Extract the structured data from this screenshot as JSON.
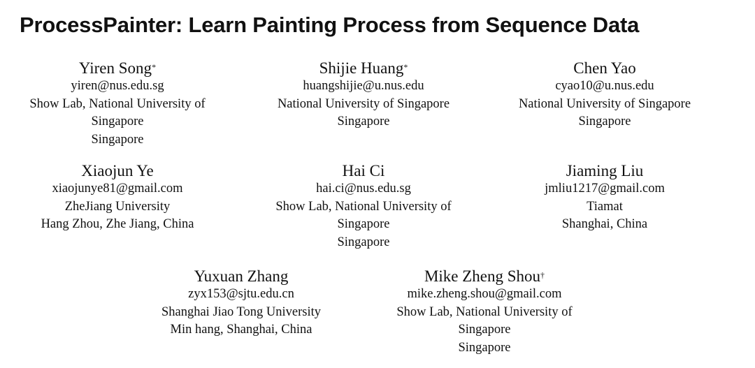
{
  "title": "ProcessPainter: Learn Painting Process from Sequence Data",
  "authors": [
    {
      "name": "Yiren Song",
      "mark": "*",
      "email": "yiren@nus.edu.sg",
      "affiliation": [
        "Show Lab, National University of",
        "Singapore",
        "Singapore"
      ]
    },
    {
      "name": "Shijie Huang",
      "mark": "*",
      "email": "huangshijie@u.nus.edu",
      "affiliation": [
        "National University of Singapore",
        "Singapore"
      ]
    },
    {
      "name": "Chen Yao",
      "mark": "",
      "email": "cyao10@u.nus.edu",
      "affiliation": [
        "National University of Singapore",
        "Singapore"
      ]
    },
    {
      "name": "Xiaojun Ye",
      "mark": "",
      "email": "xiaojunye81@gmail.com",
      "affiliation": [
        "ZheJiang University",
        "Hang Zhou, Zhe Jiang, China"
      ]
    },
    {
      "name": "Hai Ci",
      "mark": "",
      "email": "hai.ci@nus.edu.sg",
      "affiliation": [
        "Show Lab, National University of",
        "Singapore",
        "Singapore"
      ]
    },
    {
      "name": "Jiaming Liu",
      "mark": "",
      "email": "jmliu1217@gmail.com",
      "affiliation": [
        "Tiamat",
        "Shanghai, China"
      ]
    },
    {
      "name": "Yuxuan Zhang",
      "mark": "",
      "email": "zyx153@sjtu.edu.cn",
      "affiliation": [
        "Shanghai Jiao Tong University",
        "Min hang, Shanghai, China"
      ]
    },
    {
      "name": "Mike Zheng Shou",
      "mark": "†",
      "email": "mike.zheng.shou@gmail.com",
      "affiliation": [
        "Show Lab, National University of",
        "Singapore",
        "Singapore"
      ]
    }
  ]
}
